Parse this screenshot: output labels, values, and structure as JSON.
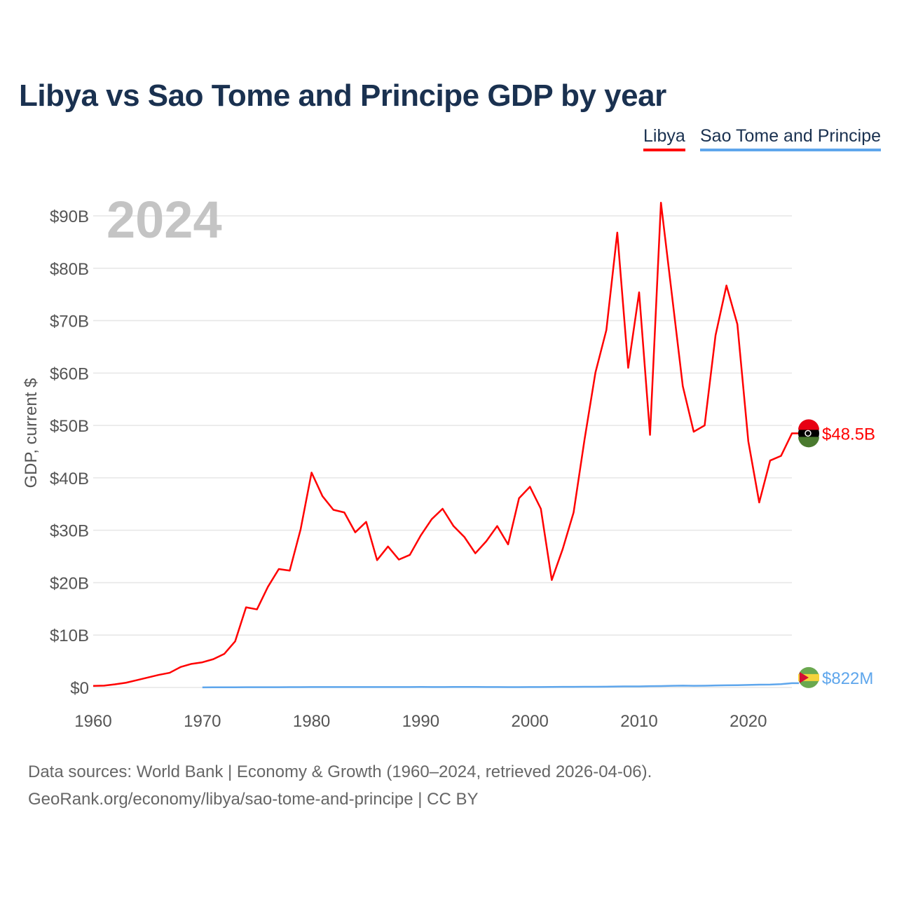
{
  "footer": {
    "line1": "Data sources: World Bank | Economy & Growth (1960–2024, retrieved 2026-04-06).",
    "line2": "GeoRank.org/economy/libya/sao-tome-and-principe | CC BY"
  },
  "chart_data": {
    "type": "line",
    "title": "Libya vs Sao Tome and Principe GDP by year",
    "ylabel": "GDP, current $",
    "xlabel": "",
    "year_label": "2024",
    "xlim": [
      1960,
      2024
    ],
    "ylim": [
      0,
      90
    ],
    "yticks": [
      {
        "v": 0,
        "l": "$0"
      },
      {
        "v": 10,
        "l": "$10B"
      },
      {
        "v": 20,
        "l": "$20B"
      },
      {
        "v": 30,
        "l": "$30B"
      },
      {
        "v": 40,
        "l": "$40B"
      },
      {
        "v": 50,
        "l": "$50B"
      },
      {
        "v": 60,
        "l": "$60B"
      },
      {
        "v": 70,
        "l": "$70B"
      },
      {
        "v": 80,
        "l": "$80B"
      },
      {
        "v": 90,
        "l": "$90B"
      }
    ],
    "xticks": [
      1960,
      1970,
      1980,
      1990,
      2000,
      2010,
      2020
    ],
    "legend_position": "top-right",
    "series": [
      {
        "name": "Libya",
        "color": "#ff0000",
        "start": 1960,
        "end_label": "$48.5B",
        "flag": "libya-flag",
        "values": [
          0.3,
          0.35,
          0.6,
          0.9,
          1.4,
          1.9,
          2.4,
          2.8,
          3.9,
          4.5,
          4.8,
          5.4,
          6.4,
          8.8,
          15.3,
          14.9,
          19.2,
          22.6,
          22.3,
          30.2,
          41.0,
          36.5,
          33.9,
          33.4,
          29.6,
          31.6,
          24.3,
          26.9,
          24.4,
          25.3,
          29.0,
          32.1,
          34.1,
          30.8,
          28.7,
          25.6,
          27.9,
          30.8,
          27.3,
          36.1,
          38.3,
          34.1,
          20.5,
          26.4,
          33.4,
          47.3,
          60.1,
          68.2,
          86.8,
          61.0,
          75.4,
          48.2,
          92.5,
          75.0,
          57.5,
          48.8,
          50.0,
          67.2,
          76.7,
          69.3,
          47.0,
          35.3,
          43.3,
          44.2,
          48.5
        ]
      },
      {
        "name": "Sao Tome and Principe",
        "color": "#5ea6ec",
        "start": 1970,
        "end_label": "$822M",
        "flag": "sao-tome-flag",
        "values": [
          0.02,
          0.03,
          0.03,
          0.04,
          0.05,
          0.05,
          0.05,
          0.05,
          0.06,
          0.07,
          0.08,
          0.08,
          0.08,
          0.08,
          0.08,
          0.08,
          0.09,
          0.09,
          0.09,
          0.09,
          0.1,
          0.09,
          0.08,
          0.1,
          0.1,
          0.1,
          0.09,
          0.09,
          0.07,
          0.07,
          0.08,
          0.08,
          0.1,
          0.11,
          0.12,
          0.13,
          0.14,
          0.15,
          0.19,
          0.2,
          0.2,
          0.25,
          0.27,
          0.31,
          0.35,
          0.32,
          0.34,
          0.38,
          0.42,
          0.43,
          0.48,
          0.53,
          0.55,
          0.63,
          0.82
        ]
      }
    ]
  }
}
